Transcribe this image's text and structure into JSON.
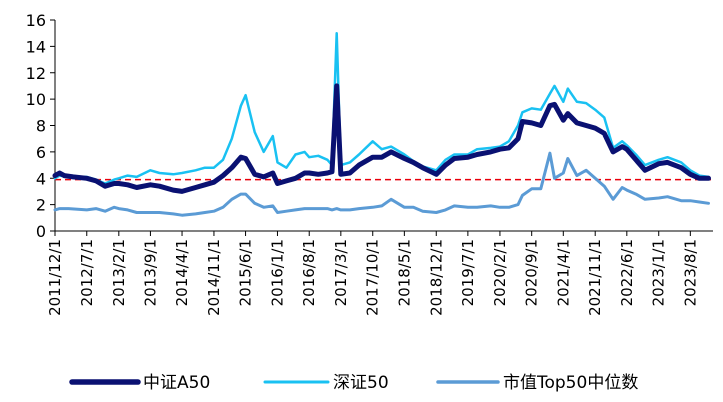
{
  "chart_data": {
    "type": "line",
    "ylim": [
      0,
      16
    ],
    "y_ticks": [
      "0",
      "2",
      "4",
      "6",
      "8",
      "10",
      "12",
      "14",
      "16"
    ],
    "x_ticks": [
      "2011/12/1",
      "2012/7/1",
      "2013/2/1",
      "2013/9/1",
      "2014/4/1",
      "2014/11/1",
      "2015/6/1",
      "2016/1/1",
      "2016/8/1",
      "2017/3/1",
      "2017/10/1",
      "2018/5/1",
      "2018/12/1",
      "2019/7/1",
      "2020/2/1",
      "2020/9/1",
      "2021/4/1",
      "2021/11/1",
      "2022/6/1",
      "2023/1/1",
      "2023/8/1"
    ],
    "grid": false,
    "legend_position": "bottom",
    "reference_line": {
      "value": 3.9,
      "style": "dashed",
      "color": "#e8000b"
    },
    "series": [
      {
        "name": "中证A50",
        "color": "#0a1172",
        "points": [
          [
            "2011/12/1",
            4.2
          ],
          [
            "2012/1/1",
            4.4
          ],
          [
            "2012/2/1",
            4.2
          ],
          [
            "2012/4/1",
            4.1
          ],
          [
            "2012/7/1",
            4.0
          ],
          [
            "2012/9/1",
            3.8
          ],
          [
            "2012/11/1",
            3.4
          ],
          [
            "2013/1/1",
            3.6
          ],
          [
            "2013/2/1",
            3.6
          ],
          [
            "2013/4/1",
            3.5
          ],
          [
            "2013/6/1",
            3.3
          ],
          [
            "2013/9/1",
            3.5
          ],
          [
            "2013/11/1",
            3.4
          ],
          [
            "2014/2/1",
            3.1
          ],
          [
            "2014/4/1",
            3.0
          ],
          [
            "2014/7/1",
            3.3
          ],
          [
            "2014/9/1",
            3.5
          ],
          [
            "2014/11/1",
            3.7
          ],
          [
            "2015/1/1",
            4.2
          ],
          [
            "2015/3/1",
            4.8
          ],
          [
            "2015/5/1",
            5.6
          ],
          [
            "2015/6/1",
            5.5
          ],
          [
            "2015/8/1",
            4.3
          ],
          [
            "2015/10/1",
            4.1
          ],
          [
            "2015/12/1",
            4.4
          ],
          [
            "2016/1/1",
            3.6
          ],
          [
            "2016/3/1",
            3.8
          ],
          [
            "2016/5/1",
            4.0
          ],
          [
            "2016/7/1",
            4.4
          ],
          [
            "2016/8/1",
            4.4
          ],
          [
            "2016/10/1",
            4.3
          ],
          [
            "2016/12/1",
            4.4
          ],
          [
            "2017/1/1",
            4.5
          ],
          [
            "2017/2/1",
            11.0
          ],
          [
            "2017/3/1",
            4.3
          ],
          [
            "2017/5/1",
            4.4
          ],
          [
            "2017/7/1",
            5.0
          ],
          [
            "2017/10/1",
            5.6
          ],
          [
            "2017/12/1",
            5.6
          ],
          [
            "2018/2/1",
            6.0
          ],
          [
            "2018/5/1",
            5.5
          ],
          [
            "2018/7/1",
            5.2
          ],
          [
            "2018/9/1",
            4.8
          ],
          [
            "2018/12/1",
            4.3
          ],
          [
            "2019/2/1",
            5.0
          ],
          [
            "2019/4/1",
            5.5
          ],
          [
            "2019/7/1",
            5.6
          ],
          [
            "2019/9/1",
            5.8
          ],
          [
            "2019/12/1",
            6.0
          ],
          [
            "2020/2/1",
            6.2
          ],
          [
            "2020/4/1",
            6.3
          ],
          [
            "2020/6/1",
            7.0
          ],
          [
            "2020/7/1",
            8.3
          ],
          [
            "2020/9/1",
            8.2
          ],
          [
            "2020/11/1",
            8.0
          ],
          [
            "2021/1/1",
            9.5
          ],
          [
            "2021/2/1",
            9.6
          ],
          [
            "2021/4/1",
            8.4
          ],
          [
            "2021/5/1",
            8.9
          ],
          [
            "2021/7/1",
            8.2
          ],
          [
            "2021/9/1",
            8.0
          ],
          [
            "2021/11/1",
            7.8
          ],
          [
            "2022/1/1",
            7.4
          ],
          [
            "2022/3/1",
            6.0
          ],
          [
            "2022/5/1",
            6.4
          ],
          [
            "2022/6/1",
            6.2
          ],
          [
            "2022/8/1",
            5.4
          ],
          [
            "2022/10/1",
            4.6
          ],
          [
            "2023/1/1",
            5.1
          ],
          [
            "2023/3/1",
            5.2
          ],
          [
            "2023/6/1",
            4.8
          ],
          [
            "2023/8/1",
            4.3
          ],
          [
            "2023/10/1",
            4.0
          ],
          [
            "2023/12/1",
            4.0
          ]
        ]
      },
      {
        "name": "深证50",
        "color": "#19c1f2",
        "points": [
          [
            "2011/12/1",
            4.0
          ],
          [
            "2012/1/1",
            4.2
          ],
          [
            "2012/3/1",
            4.1
          ],
          [
            "2012/7/1",
            4.1
          ],
          [
            "2012/9/1",
            3.9
          ],
          [
            "2012/11/1",
            3.6
          ],
          [
            "2013/1/1",
            3.9
          ],
          [
            "2013/2/1",
            4.0
          ],
          [
            "2013/4/1",
            4.2
          ],
          [
            "2013/6/1",
            4.1
          ],
          [
            "2013/9/1",
            4.6
          ],
          [
            "2013/11/1",
            4.4
          ],
          [
            "2014/2/1",
            4.3
          ],
          [
            "2014/4/1",
            4.4
          ],
          [
            "2014/7/1",
            4.6
          ],
          [
            "2014/9/1",
            4.8
          ],
          [
            "2014/11/1",
            4.8
          ],
          [
            "2015/1/1",
            5.4
          ],
          [
            "2015/3/1",
            7.0
          ],
          [
            "2015/5/1",
            9.5
          ],
          [
            "2015/6/1",
            10.3
          ],
          [
            "2015/8/1",
            7.5
          ],
          [
            "2015/10/1",
            6.0
          ],
          [
            "2015/12/1",
            7.2
          ],
          [
            "2016/1/1",
            5.2
          ],
          [
            "2016/3/1",
            4.8
          ],
          [
            "2016/5/1",
            5.8
          ],
          [
            "2016/7/1",
            6.0
          ],
          [
            "2016/8/1",
            5.6
          ],
          [
            "2016/10/1",
            5.7
          ],
          [
            "2016/12/1",
            5.4
          ],
          [
            "2017/1/1",
            5.0
          ],
          [
            "2017/2/1",
            15.0
          ],
          [
            "2017/3/1",
            5.0
          ],
          [
            "2017/5/1",
            5.2
          ],
          [
            "2017/7/1",
            5.8
          ],
          [
            "2017/10/1",
            6.8
          ],
          [
            "2017/12/1",
            6.2
          ],
          [
            "2018/2/1",
            6.4
          ],
          [
            "2018/5/1",
            5.8
          ],
          [
            "2018/7/1",
            5.3
          ],
          [
            "2018/9/1",
            4.9
          ],
          [
            "2018/12/1",
            4.6
          ],
          [
            "2019/2/1",
            5.4
          ],
          [
            "2019/4/1",
            5.8
          ],
          [
            "2019/7/1",
            5.8
          ],
          [
            "2019/9/1",
            6.2
          ],
          [
            "2019/12/1",
            6.3
          ],
          [
            "2020/2/1",
            6.4
          ],
          [
            "2020/4/1",
            6.8
          ],
          [
            "2020/6/1",
            8.0
          ],
          [
            "2020/7/1",
            9.0
          ],
          [
            "2020/9/1",
            9.3
          ],
          [
            "2020/11/1",
            9.2
          ],
          [
            "2021/1/1",
            10.4
          ],
          [
            "2021/2/1",
            11.0
          ],
          [
            "2021/4/1",
            9.8
          ],
          [
            "2021/5/1",
            10.8
          ],
          [
            "2021/7/1",
            9.8
          ],
          [
            "2021/9/1",
            9.7
          ],
          [
            "2021/11/1",
            9.2
          ],
          [
            "2022/1/1",
            8.6
          ],
          [
            "2022/3/1",
            6.3
          ],
          [
            "2022/5/1",
            6.8
          ],
          [
            "2022/6/1",
            6.5
          ],
          [
            "2022/8/1",
            5.8
          ],
          [
            "2022/10/1",
            5.0
          ],
          [
            "2023/1/1",
            5.4
          ],
          [
            "2023/3/1",
            5.6
          ],
          [
            "2023/6/1",
            5.2
          ],
          [
            "2023/8/1",
            4.6
          ],
          [
            "2023/10/1",
            4.2
          ],
          [
            "2023/12/1",
            4.1
          ]
        ]
      },
      {
        "name": "市值Top50中位数",
        "color": "#5b9bd5",
        "points": [
          [
            "2011/12/1",
            1.6
          ],
          [
            "2012/1/1",
            1.7
          ],
          [
            "2012/3/1",
            1.7
          ],
          [
            "2012/7/1",
            1.6
          ],
          [
            "2012/9/1",
            1.7
          ],
          [
            "2012/11/1",
            1.5
          ],
          [
            "2013/1/1",
            1.8
          ],
          [
            "2013/2/1",
            1.7
          ],
          [
            "2013/4/1",
            1.6
          ],
          [
            "2013/6/1",
            1.4
          ],
          [
            "2013/9/1",
            1.4
          ],
          [
            "2013/11/1",
            1.4
          ],
          [
            "2014/2/1",
            1.3
          ],
          [
            "2014/4/1",
            1.2
          ],
          [
            "2014/7/1",
            1.3
          ],
          [
            "2014/9/1",
            1.4
          ],
          [
            "2014/11/1",
            1.5
          ],
          [
            "2015/1/1",
            1.8
          ],
          [
            "2015/3/1",
            2.4
          ],
          [
            "2015/5/1",
            2.8
          ],
          [
            "2015/6/1",
            2.8
          ],
          [
            "2015/8/1",
            2.1
          ],
          [
            "2015/10/1",
            1.8
          ],
          [
            "2015/12/1",
            1.9
          ],
          [
            "2016/1/1",
            1.4
          ],
          [
            "2016/3/1",
            1.5
          ],
          [
            "2016/5/1",
            1.6
          ],
          [
            "2016/7/1",
            1.7
          ],
          [
            "2016/8/1",
            1.7
          ],
          [
            "2016/10/1",
            1.7
          ],
          [
            "2016/12/1",
            1.7
          ],
          [
            "2017/1/1",
            1.6
          ],
          [
            "2017/2/1",
            1.7
          ],
          [
            "2017/3/1",
            1.6
          ],
          [
            "2017/5/1",
            1.6
          ],
          [
            "2017/7/1",
            1.7
          ],
          [
            "2017/10/1",
            1.8
          ],
          [
            "2017/12/1",
            1.9
          ],
          [
            "2018/2/1",
            2.4
          ],
          [
            "2018/5/1",
            1.8
          ],
          [
            "2018/7/1",
            1.8
          ],
          [
            "2018/9/1",
            1.5
          ],
          [
            "2018/12/1",
            1.4
          ],
          [
            "2019/2/1",
            1.6
          ],
          [
            "2019/4/1",
            1.9
          ],
          [
            "2019/7/1",
            1.8
          ],
          [
            "2019/9/1",
            1.8
          ],
          [
            "2019/12/1",
            1.9
          ],
          [
            "2020/2/1",
            1.8
          ],
          [
            "2020/4/1",
            1.8
          ],
          [
            "2020/6/1",
            2.0
          ],
          [
            "2020/7/1",
            2.7
          ],
          [
            "2020/9/1",
            3.2
          ],
          [
            "2020/11/1",
            3.2
          ],
          [
            "2021/1/1",
            5.9
          ],
          [
            "2021/2/1",
            4.0
          ],
          [
            "2021/4/1",
            4.4
          ],
          [
            "2021/5/1",
            5.5
          ],
          [
            "2021/7/1",
            4.2
          ],
          [
            "2021/9/1",
            4.6
          ],
          [
            "2021/11/1",
            4.0
          ],
          [
            "2022/1/1",
            3.4
          ],
          [
            "2022/3/1",
            2.4
          ],
          [
            "2022/5/1",
            3.3
          ],
          [
            "2022/6/1",
            3.1
          ],
          [
            "2022/8/1",
            2.8
          ],
          [
            "2022/10/1",
            2.4
          ],
          [
            "2023/1/1",
            2.5
          ],
          [
            "2023/3/1",
            2.6
          ],
          [
            "2023/6/1",
            2.3
          ],
          [
            "2023/8/1",
            2.3
          ],
          [
            "2023/10/1",
            2.2
          ],
          [
            "2023/12/1",
            2.1
          ]
        ]
      }
    ]
  }
}
